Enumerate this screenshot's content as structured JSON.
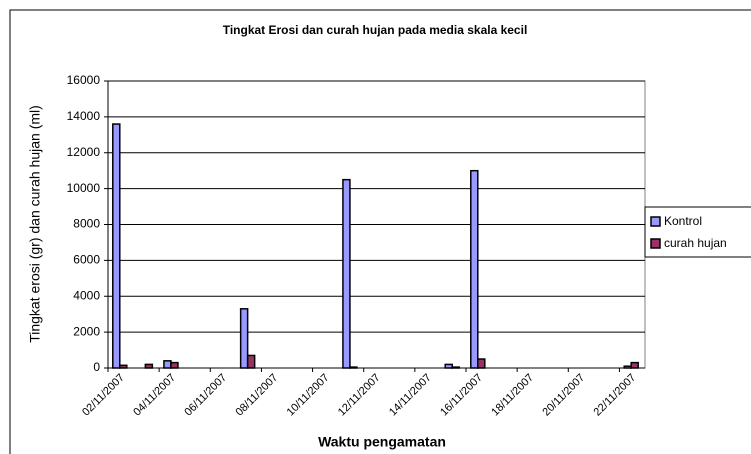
{
  "chart_data": {
    "type": "bar",
    "title": "Tingkat Erosi  dan curah hujan pada media skala kecil",
    "x_label": "Waktu pengamatan",
    "y_label": "Tingkat erosi (gr) dan curah hujan (ml)",
    "categories": [
      "02/11/2007",
      null,
      "04/11/2007",
      null,
      "06/11/2007",
      null,
      "08/11/2007",
      null,
      "10/11/2007",
      null,
      "12/11/2007",
      null,
      "14/11/2007",
      null,
      "16/11/2007",
      null,
      "18/11/2007",
      null,
      "20/11/2007",
      null,
      "22/11/2007"
    ],
    "series": [
      {
        "name": "Kontrol",
        "color": "#9999ff",
        "values": [
          13600,
          0,
          400,
          0,
          0,
          3300,
          0,
          0,
          0,
          10500,
          0,
          0,
          0,
          200,
          11000,
          0,
          0,
          0,
          0,
          0,
          100
        ]
      },
      {
        "name": "curah hujan",
        "color": "#993366",
        "values": [
          150,
          200,
          300,
          0,
          0,
          700,
          0,
          0,
          0,
          50,
          0,
          0,
          0,
          50,
          500,
          0,
          0,
          0,
          0,
          0,
          300
        ]
      }
    ],
    "ylim": [
      0,
      16000
    ],
    "yticks": [
      0,
      2000,
      4000,
      6000,
      8000,
      10000,
      12000,
      14000,
      16000
    ],
    "grid": true,
    "legend": "right"
  }
}
